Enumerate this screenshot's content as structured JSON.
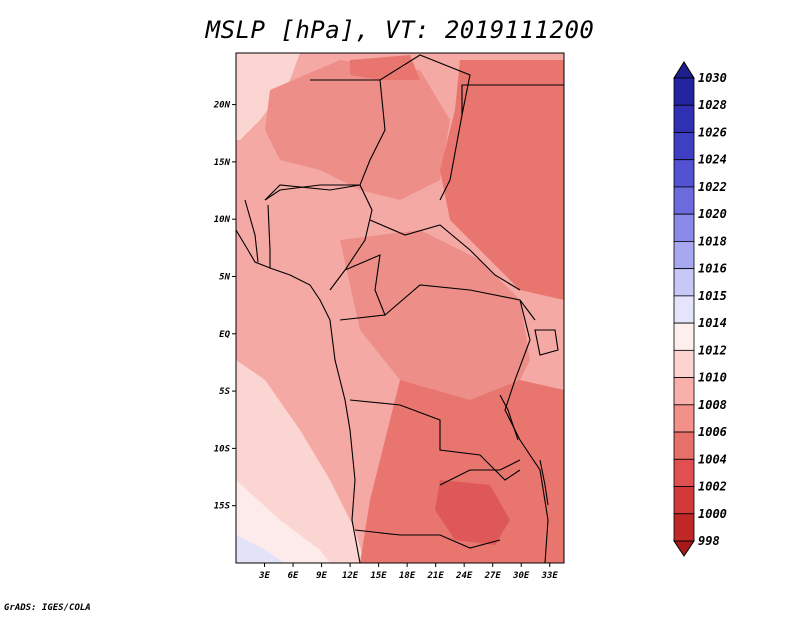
{
  "title": "MSLP [hPa], VT: 2019111200",
  "credit": "GrADS: IGES/COLA",
  "map": {
    "lat_labels": [
      "20N",
      "15N",
      "10N",
      "5N",
      "EQ",
      "5S",
      "10S",
      "15S"
    ],
    "lat_values": [
      20,
      15,
      10,
      5,
      0,
      -5,
      -10,
      -15
    ],
    "lon_labels": [
      "3E",
      "6E",
      "9E",
      "12E",
      "15E",
      "18E",
      "21E",
      "24E",
      "27E",
      "30E",
      "33E"
    ],
    "lon_values": [
      3,
      6,
      9,
      12,
      15,
      18,
      21,
      24,
      27,
      30,
      33
    ],
    "lon_range": [
      0,
      34.5
    ],
    "lat_range": [
      -20,
      24.5
    ]
  },
  "colorbar": {
    "labels": [
      "1030",
      "1028",
      "1026",
      "1024",
      "1022",
      "1020",
      "1018",
      "1016",
      "1015",
      "1014",
      "1012",
      "1010",
      "1008",
      "1006",
      "1004",
      "1002",
      "1000",
      "998"
    ],
    "colors": [
      "#1e1e8c",
      "#2424a0",
      "#3030b4",
      "#3f3fc4",
      "#5252d2",
      "#6b6bde",
      "#8a8ae8",
      "#a8a8f0",
      "#c8c8f6",
      "#e4e4fa",
      "#ffeeee",
      "#fdd3d0",
      "#f9b0ab",
      "#f29089",
      "#e8706a",
      "#e05050",
      "#d23a3a",
      "#c02828",
      "#a81a1a"
    ]
  }
}
